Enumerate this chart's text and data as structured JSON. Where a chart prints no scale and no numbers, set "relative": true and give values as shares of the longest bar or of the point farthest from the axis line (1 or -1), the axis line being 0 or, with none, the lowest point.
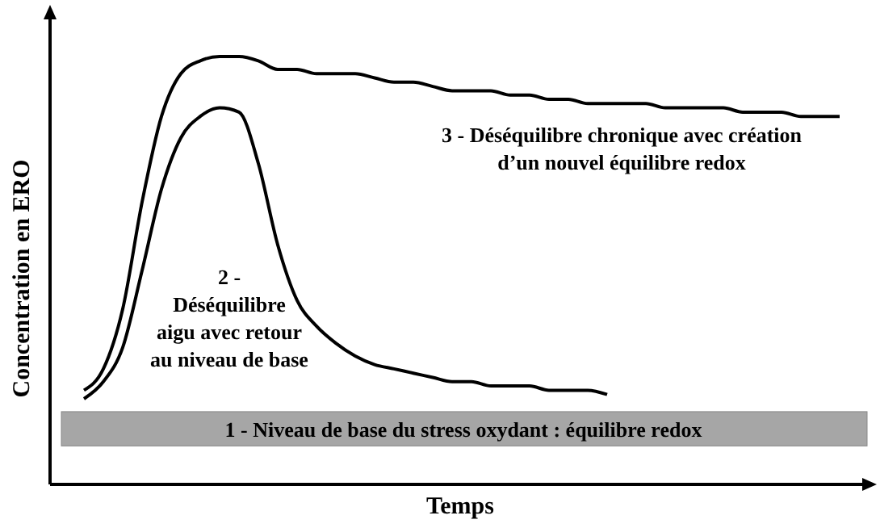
{
  "chart_data": {
    "type": "line",
    "relative": true,
    "xlabel": "Temps",
    "ylabel": "Concentration en ERO",
    "marker": "none",
    "line_style": "solid",
    "categories": [
      null,
      null,
      null,
      null,
      null,
      null,
      null,
      null,
      null,
      null,
      null,
      null,
      null,
      null,
      null,
      null,
      null,
      null,
      null,
      null,
      null,
      null,
      null,
      null,
      null,
      null,
      null,
      null,
      null,
      null,
      null,
      null,
      null,
      null,
      null,
      null,
      null,
      null,
      null,
      null
    ],
    "series": [
      {
        "name": "3 - Déséquilibre chronique  avec création\nd’un nouvel équilibre redox",
        "color": "#000000",
        "values": [
          0.22,
          0.27,
          0.41,
          0.66,
          0.86,
          0.96,
          0.99,
          1,
          1,
          0.99,
          0.97,
          0.97,
          0.96,
          0.96,
          0.96,
          0.95,
          0.94,
          0.94,
          0.93,
          0.92,
          0.92,
          0.92,
          0.91,
          0.91,
          0.9,
          0.9,
          0.89,
          0.89,
          0.89,
          0.89,
          0.88,
          0.88,
          0.88,
          0.88,
          0.87,
          0.87,
          0.87,
          0.86,
          0.86,
          0.86
        ]
      },
      {
        "name": "2 -\nDéséquilibre\naigu avec retour\nau niveau de base",
        "color": "#000000",
        "values": [
          0.2,
          0.24,
          0.32,
          0.5,
          0.69,
          0.81,
          0.86,
          0.88,
          0.87,
          0.75,
          0.56,
          0.43,
          0.37,
          0.33,
          0.3,
          0.28,
          0.27,
          0.26,
          0.25,
          0.24,
          0.24,
          0.23,
          0.23,
          0.23,
          0.22,
          0.22,
          0.22,
          0.21,
          null,
          null,
          null,
          null,
          null,
          null,
          null,
          null,
          null,
          null,
          null,
          null
        ]
      }
    ],
    "bands": [
      {
        "axis": "y",
        "from": 0.09,
        "to": 0.17,
        "label": "1 - Niveau de base du stress oxydant : équilibre redox",
        "color": "#a6a6a6"
      }
    ]
  }
}
